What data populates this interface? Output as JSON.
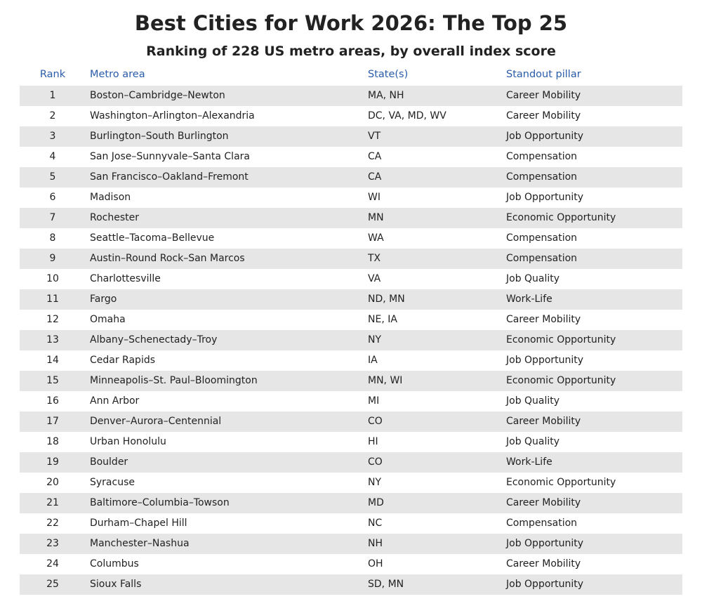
{
  "header": {
    "title": "Best Cities for Work 2026: The Top 25",
    "subtitle": "Ranking of 228 US metro areas, by overall index score"
  },
  "table": {
    "columns": [
      "Rank",
      "Metro area",
      "State(s)",
      "Standout pillar"
    ],
    "rows": [
      [
        1,
        "Boston–Cambridge–Newton",
        "MA, NH",
        "Career Mobility"
      ],
      [
        2,
        "Washington–Arlington–Alexandria",
        "DC, VA, MD, WV",
        "Career Mobility"
      ],
      [
        3,
        "Burlington–South Burlington",
        "VT",
        "Job Opportunity"
      ],
      [
        4,
        "San Jose–Sunnyvale–Santa Clara",
        "CA",
        "Compensation"
      ],
      [
        5,
        "San Francisco–Oakland–Fremont",
        "CA",
        "Compensation"
      ],
      [
        6,
        "Madison",
        "WI",
        "Job Opportunity"
      ],
      [
        7,
        "Rochester",
        "MN",
        "Economic Opportunity"
      ],
      [
        8,
        "Seattle–Tacoma–Bellevue",
        "WA",
        "Compensation"
      ],
      [
        9,
        "Austin–Round Rock–San Marcos",
        "TX",
        "Compensation"
      ],
      [
        10,
        "Charlottesville",
        "VA",
        "Job Quality"
      ],
      [
        11,
        "Fargo",
        "ND, MN",
        "Work-Life"
      ],
      [
        12,
        "Omaha",
        "NE, IA",
        "Career Mobility"
      ],
      [
        13,
        "Albany–Schenectady–Troy",
        "NY",
        "Economic Opportunity"
      ],
      [
        14,
        "Cedar Rapids",
        "IA",
        "Job Opportunity"
      ],
      [
        15,
        "Minneapolis–St. Paul–Bloomington",
        "MN, WI",
        "Economic Opportunity"
      ],
      [
        16,
        "Ann Arbor",
        "MI",
        "Job Quality"
      ],
      [
        17,
        "Denver–Aurora–Centennial",
        "CO",
        "Career Mobility"
      ],
      [
        18,
        "Urban Honolulu",
        "HI",
        "Job Quality"
      ],
      [
        19,
        "Boulder",
        "CO",
        "Work-Life"
      ],
      [
        20,
        "Syracuse",
        "NY",
        "Economic Opportunity"
      ],
      [
        21,
        "Baltimore–Columbia–Towson",
        "MD",
        "Career Mobility"
      ],
      [
        22,
        "Durham–Chapel Hill",
        "NC",
        "Compensation"
      ],
      [
        23,
        "Manchester–Nashua",
        "NH",
        "Job Opportunity"
      ],
      [
        24,
        "Columbus",
        "OH",
        "Career Mobility"
      ],
      [
        25,
        "Sioux Falls",
        "SD, MN",
        "Job Opportunity"
      ]
    ]
  }
}
